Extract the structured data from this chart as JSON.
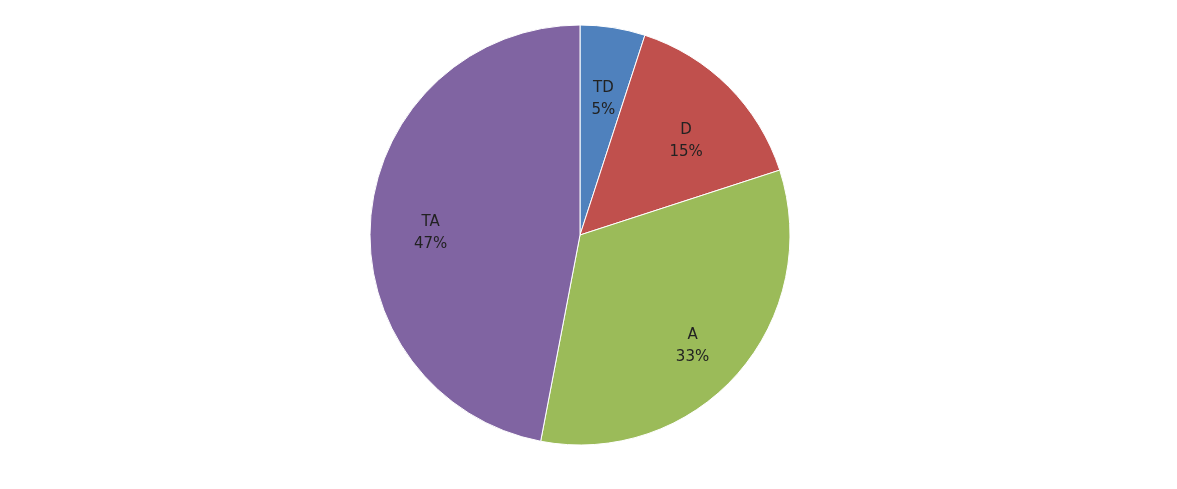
{
  "chart_data": {
    "type": "pie",
    "categories": [
      "TD",
      "D",
      "A",
      "TA"
    ],
    "values": [
      5,
      15,
      33,
      47
    ],
    "value_labels": [
      "5%",
      "15%",
      "33%",
      "47%"
    ],
    "colors": [
      "#4f81bd",
      "#c0504d",
      "#9bbb59",
      "#8064a2"
    ],
    "legend": false
  }
}
